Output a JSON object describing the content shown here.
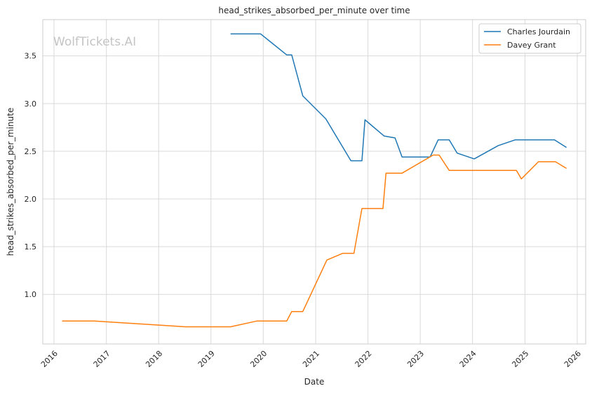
{
  "chart_data": {
    "type": "line",
    "title": "head_strikes_absorbed_per_minute over time",
    "xlabel": "Date",
    "ylabel": "head_strikes_absorbed_per_minute",
    "watermark": "WolfTickets.AI",
    "xlim": [
      "2015-10-15",
      "2026-03-01"
    ],
    "ylim": [
      0.48,
      3.88
    ],
    "x_ticks": [
      "2016",
      "2017",
      "2018",
      "2019",
      "2020",
      "2021",
      "2022",
      "2023",
      "2024",
      "2025",
      "2026"
    ],
    "y_ticks": [
      "1.0",
      "1.5",
      "2.0",
      "2.5",
      "3.0",
      "3.5"
    ],
    "y_tick_values": [
      1.0,
      1.5,
      2.0,
      2.5,
      3.0,
      3.5
    ],
    "grid": true,
    "legend_position": "top-right",
    "series": [
      {
        "name": "Charles Jourdain",
        "color": "#1f77b4",
        "points": [
          [
            "2019-05-18",
            3.73
          ],
          [
            "2019-12-14",
            3.73
          ],
          [
            "2020-06-13",
            3.51
          ],
          [
            "2020-07-18",
            3.51
          ],
          [
            "2020-10-03",
            3.08
          ],
          [
            "2021-03-13",
            2.84
          ],
          [
            "2021-09-04",
            2.4
          ],
          [
            "2021-11-20",
            2.4
          ],
          [
            "2021-12-11",
            2.83
          ],
          [
            "2022-04-23",
            2.66
          ],
          [
            "2022-07-09",
            2.64
          ],
          [
            "2022-08-27",
            2.44
          ],
          [
            "2023-03-11",
            2.44
          ],
          [
            "2023-05-06",
            2.62
          ],
          [
            "2023-07-22",
            2.62
          ],
          [
            "2023-09-16",
            2.48
          ],
          [
            "2024-01-13",
            2.42
          ],
          [
            "2024-06-29",
            2.56
          ],
          [
            "2024-10-26",
            2.62
          ],
          [
            "2025-07-26",
            2.62
          ],
          [
            "2025-10-18",
            2.54
          ]
        ]
      },
      {
        "name": "Davey Grant",
        "color": "#ff7f0e",
        "points": [
          [
            "2016-02-27",
            0.72
          ],
          [
            "2016-10-08",
            0.72
          ],
          [
            "2018-07-07",
            0.66
          ],
          [
            "2019-05-18",
            0.66
          ],
          [
            "2019-11-16",
            0.72
          ],
          [
            "2020-06-13",
            0.72
          ],
          [
            "2020-07-18",
            0.82
          ],
          [
            "2020-10-03",
            0.82
          ],
          [
            "2021-03-20",
            1.36
          ],
          [
            "2021-07-10",
            1.43
          ],
          [
            "2021-09-25",
            1.43
          ],
          [
            "2021-11-20",
            1.9
          ],
          [
            "2022-04-16",
            1.9
          ],
          [
            "2022-05-07",
            2.27
          ],
          [
            "2022-08-27",
            2.27
          ],
          [
            "2023-04-01",
            2.46
          ],
          [
            "2023-05-13",
            2.46
          ],
          [
            "2023-07-22",
            2.3
          ],
          [
            "2024-11-02",
            2.3
          ],
          [
            "2024-12-07",
            2.21
          ],
          [
            "2025-04-05",
            2.39
          ],
          [
            "2025-08-02",
            2.39
          ],
          [
            "2025-10-18",
            2.32
          ]
        ]
      }
    ]
  }
}
